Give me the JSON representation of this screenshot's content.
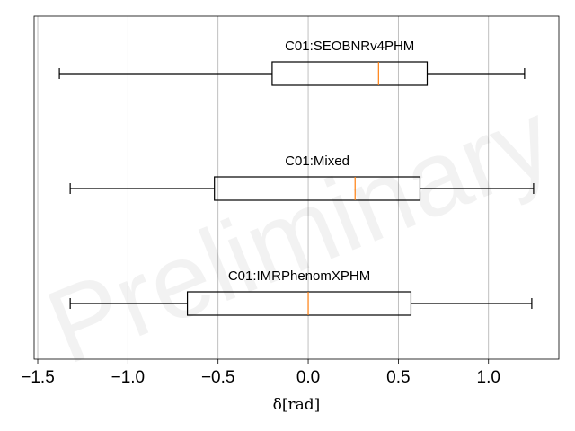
{
  "chart_data": {
    "type": "boxplot",
    "orientation": "horizontal",
    "xlabel": "δ[rad]",
    "xlim": [
      -1.52,
      1.39
    ],
    "xticks": [
      -1.5,
      -1.0,
      -0.5,
      0.0,
      0.5,
      1.0
    ],
    "xtick_labels": [
      "−1.5",
      "−1.0",
      "−0.5",
      "0.0",
      "0.5",
      "1.0"
    ],
    "grid": "vertical",
    "watermark": "Preliminary",
    "series": [
      {
        "name": "C01:SEOBNRv4PHM",
        "whisker_low": -1.38,
        "q1": -0.2,
        "median": 0.39,
        "q3": 0.66,
        "whisker_high": 1.2
      },
      {
        "name": "C01:Mixed",
        "whisker_low": -1.32,
        "q1": -0.52,
        "median": 0.26,
        "q3": 0.62,
        "whisker_high": 1.25
      },
      {
        "name": "C01:IMRPhenomXPHM",
        "whisker_low": -1.32,
        "q1": -0.67,
        "median": 0.0,
        "q3": 0.57,
        "whisker_high": 1.24
      }
    ],
    "colors": {
      "box": "#000000",
      "median": "#ff7f0e",
      "grid": "#b0b0b0"
    }
  }
}
